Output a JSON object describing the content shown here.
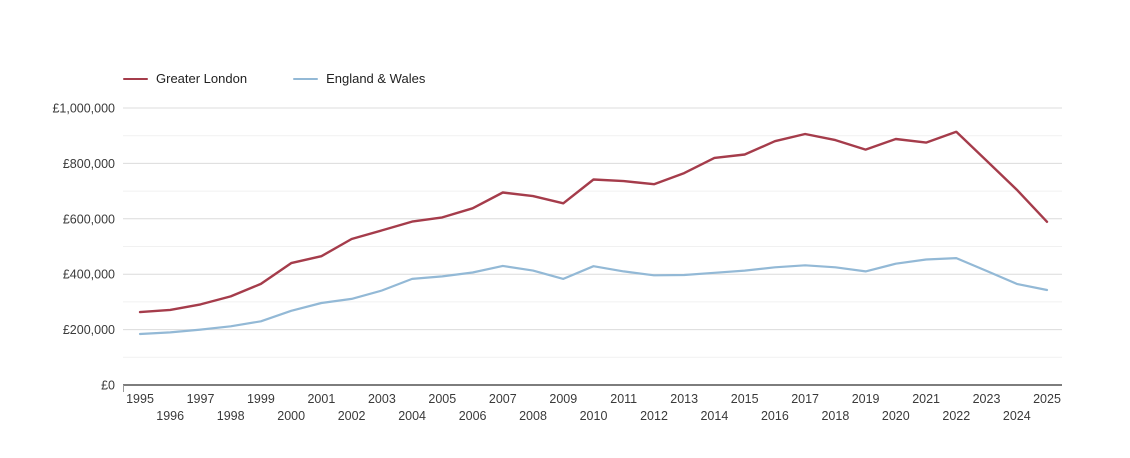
{
  "page": {
    "background": "#ffffff"
  },
  "legend": {
    "position": "top-left",
    "items": [
      {
        "label": "Greater London",
        "color": "#a53c4b"
      },
      {
        "label": "England & Wales",
        "color": "#93b9d6"
      }
    ]
  },
  "chart_data": {
    "type": "line",
    "title": "",
    "xlabel": "",
    "ylabel": "",
    "currency": "£",
    "x": [
      1995,
      1996,
      1997,
      1998,
      1999,
      2000,
      2001,
      2002,
      2003,
      2004,
      2005,
      2006,
      2007,
      2008,
      2009,
      2010,
      2011,
      2012,
      2013,
      2014,
      2015,
      2016,
      2017,
      2018,
      2019,
      2020,
      2021,
      2022,
      2023,
      2024,
      2025
    ],
    "series": [
      {
        "name": "Greater London",
        "color": "#a53c4b",
        "values": [
          263000,
          271000,
          291000,
          320000,
          365000,
          440000,
          465000,
          527000,
          558000,
          590000,
          605000,
          638000,
          695000,
          682000,
          656000,
          742000,
          736000,
          725000,
          765000,
          820000,
          832000,
          880000,
          906000,
          884000,
          850000,
          888000,
          875000,
          914000,
          810000,
          705000,
          589000
        ]
      },
      {
        "name": "England & Wales",
        "color": "#93b9d6",
        "values": [
          184000,
          190000,
          200000,
          212000,
          230000,
          268000,
          296000,
          311000,
          341000,
          383000,
          392000,
          406000,
          430000,
          413000,
          383000,
          429000,
          410000,
          396000,
          397000,
          405000,
          413000,
          425000,
          432000,
          425000,
          410000,
          438000,
          453000,
          458000,
          412000,
          365000,
          343000
        ]
      }
    ],
    "ylim": [
      0,
      1000000
    ],
    "y_major_step": 200000,
    "y_minor_step": 100000,
    "y_tick_labels": [
      "£0",
      "£200,000",
      "£400,000",
      "£600,000",
      "£800,000",
      "£1,000,000"
    ],
    "x_tick_labels": [
      "1995",
      "1996",
      "1997",
      "1998",
      "1999",
      "2000",
      "2001",
      "2002",
      "2003",
      "2004",
      "2005",
      "2006",
      "2007",
      "2008",
      "2009",
      "2010",
      "2011",
      "2012",
      "2013",
      "2014",
      "2015",
      "2016",
      "2017",
      "2018",
      "2019",
      "2020",
      "2021",
      "2022",
      "2023",
      "2024",
      "2025"
    ],
    "x_tick_layout": "staggered-odd-top",
    "grid": "horizontal",
    "legend_position": "top-left"
  }
}
